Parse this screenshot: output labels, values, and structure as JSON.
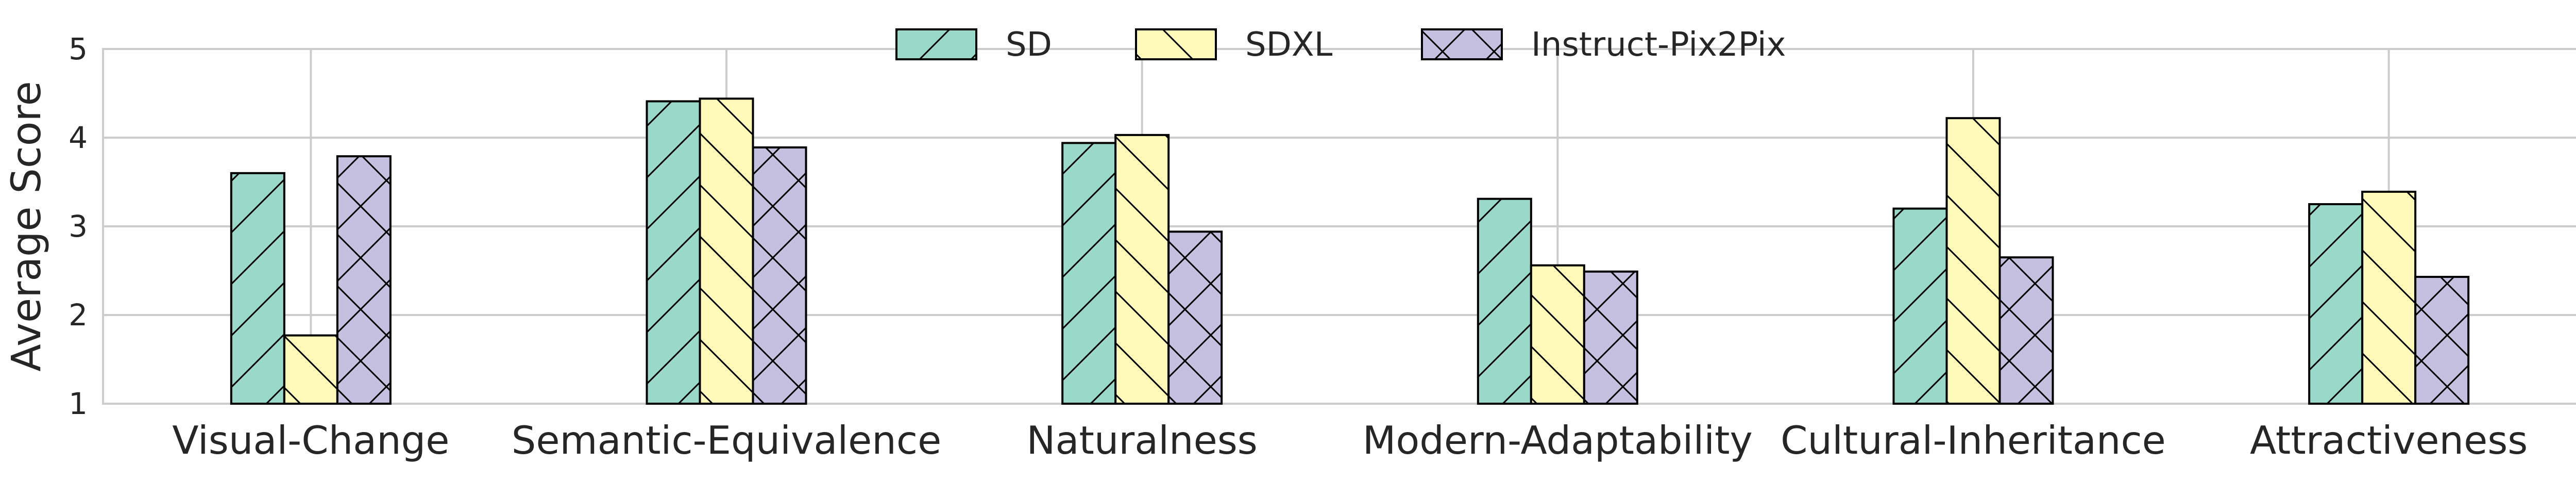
{
  "chart_data": {
    "type": "bar",
    "title": "",
    "xlabel": "",
    "ylabel": "Average Score",
    "ylim": [
      1,
      5
    ],
    "yticks": [
      1,
      2,
      3,
      4,
      5
    ],
    "grid": true,
    "legend_position": "top-center",
    "categories": [
      "Visual-Change",
      "Semantic-Equivalence",
      "Naturalness",
      "Modern-Adaptability",
      "Cultural-Inheritance",
      "Attractiveness"
    ],
    "series": [
      {
        "name": "SD",
        "color": "#9ad8ca",
        "hatch": "forward-diagonal",
        "values": [
          3.6,
          4.41,
          3.94,
          3.31,
          3.2,
          3.25
        ]
      },
      {
        "name": "SDXL",
        "color": "#fffab9",
        "hatch": "back-diagonal",
        "values": [
          1.77,
          4.44,
          4.03,
          2.56,
          4.22,
          3.39
        ]
      },
      {
        "name": "Instruct-Pix2Pix",
        "color": "#c5c0e0",
        "hatch": "cross",
        "values": [
          3.79,
          3.89,
          2.94,
          2.49,
          2.65,
          2.43
        ]
      }
    ]
  }
}
